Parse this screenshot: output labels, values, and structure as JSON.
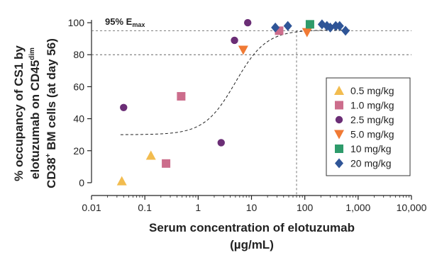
{
  "chart_data": {
    "type": "scatter",
    "xscale": "log",
    "xlim": [
      0.01,
      10000
    ],
    "ylim": [
      -8,
      108
    ],
    "xticks": [
      0.01,
      0.1,
      1,
      10,
      100,
      1000,
      10000
    ],
    "xtick_labels": [
      "0.01",
      "0.1",
      "1",
      "10",
      "100",
      "1,000",
      "10,000"
    ],
    "yticks": [
      0,
      20,
      40,
      60,
      80,
      100
    ],
    "ytick_labels": [
      "0",
      "20",
      "40",
      "60",
      "80",
      "100"
    ],
    "xlabel_line1": "Serum concentration of elotuzumab",
    "xlabel_line2": "(µg/mL)",
    "ylabel": {
      "line1_prefix": "% occupancy of CS1 by",
      "line2_prefix": "elotuzumab on CD45",
      "line2_sup": "dim",
      "line3_prefix": "CD38",
      "line3_sup": "+",
      "line3_suffix": " BM cells (at day 56)"
    },
    "annotation": {
      "main": "95% E",
      "sub": "max",
      "y": 95
    },
    "reference_lines": {
      "y": [
        95,
        80
      ],
      "x": 70
    },
    "fit_curve": {
      "bottom": 30,
      "top": 95.5,
      "ec50": 5,
      "hill": 1.5,
      "x_from": 0.035,
      "x_to": 700
    },
    "legend_position": "right",
    "series": [
      {
        "name": "0.5 mg/kg",
        "marker": "triangle-up",
        "color": "#F2BC4F",
        "points": [
          [
            0.037,
            1
          ],
          [
            0.13,
            17
          ]
        ]
      },
      {
        "name": "1.0 mg/kg",
        "marker": "square",
        "color": "#CC6D8C",
        "points": [
          [
            0.25,
            12
          ],
          [
            0.48,
            54
          ],
          [
            33,
            95
          ]
        ]
      },
      {
        "name": "2.5 mg/kg",
        "marker": "circle",
        "color": "#6B2E76",
        "points": [
          [
            0.04,
            47
          ],
          [
            2.7,
            25
          ],
          [
            4.8,
            89
          ],
          [
            8.5,
            100
          ]
        ]
      },
      {
        "name": "5.0 mg/kg",
        "marker": "triangle-down",
        "color": "#F07A34",
        "points": [
          [
            7,
            83
          ],
          [
            110,
            94
          ]
        ]
      },
      {
        "name": "10 mg/kg",
        "marker": "square",
        "color": "#2E9B6B",
        "points": [
          [
            125,
            99
          ]
        ]
      },
      {
        "name": "20 mg/kg",
        "marker": "diamond",
        "color": "#2F5597",
        "points": [
          [
            28,
            97
          ],
          [
            48,
            98
          ],
          [
            210,
            99
          ],
          [
            260,
            98
          ],
          [
            300,
            97
          ],
          [
            380,
            98
          ],
          [
            450,
            98
          ],
          [
            580,
            95
          ]
        ]
      }
    ]
  }
}
